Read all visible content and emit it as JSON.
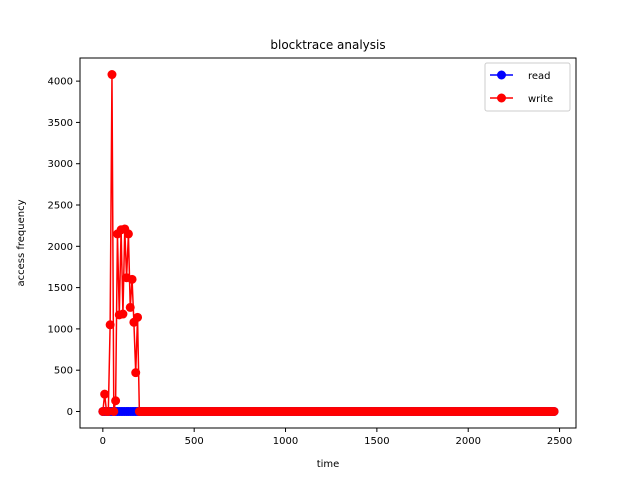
{
  "chart_data": {
    "type": "line",
    "title": "blocktrace analysis",
    "xlabel": "time",
    "ylabel": "access frequency",
    "xlim": [
      -125,
      2590
    ],
    "ylim": [
      -200,
      4280
    ],
    "xticks": [
      0,
      500,
      1000,
      1500,
      2000,
      2500
    ],
    "yticks": [
      0,
      500,
      1000,
      1500,
      2000,
      2500,
      3000,
      3500,
      4000
    ],
    "grid": false,
    "legend_position": "top-right",
    "series": [
      {
        "name": "read",
        "color": "#0000ff",
        "marker": "circle",
        "x_start": 0,
        "x_step": 10,
        "x_end": 2470,
        "values_note": "all values 0",
        "constant_value": 0
      },
      {
        "name": "write",
        "color": "#ff0000",
        "marker": "circle",
        "x_start": 0,
        "x_step": 10,
        "x_end": 2470,
        "leading_values": [
          0,
          210,
          0,
          0,
          1050,
          4080,
          0,
          130,
          2150,
          1170,
          2200,
          1180,
          2210,
          1620,
          2150,
          1260,
          1600,
          1080,
          470,
          1140
        ],
        "trailing_constant_value": 0
      }
    ]
  }
}
